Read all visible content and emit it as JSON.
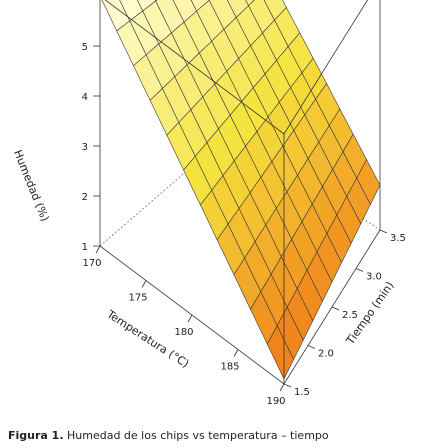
{
  "caption": {
    "label": "Figura 1.",
    "text": "Humedad de los chips vs temperatura – tiempo"
  },
  "chart_data": {
    "type": "surface3d",
    "title": "",
    "xlabel": "Temperatura (°C)",
    "ylabel": "Tiempo (min)",
    "zlabel": "Humedad (%)",
    "xlim": [
      170,
      190
    ],
    "ylim": [
      1.5,
      3.5
    ],
    "zlim": [
      1,
      6
    ],
    "x_ticks": [
      "170",
      "175",
      "180",
      "185",
      "190"
    ],
    "y_ticks": [
      "1.5",
      "2.0",
      "2.5",
      "3.0",
      "3.5"
    ],
    "z_ticks": [
      "1",
      "2",
      "3",
      "4",
      "5"
    ],
    "grid_x": [
      170,
      171.82,
      173.64,
      175.45,
      177.27,
      179.09,
      180.91,
      182.73,
      184.55,
      186.36,
      188.18,
      190
    ],
    "grid_y": [
      1.5,
      1.7,
      1.9,
      2.1,
      2.3,
      2.5,
      2.7,
      2.9,
      3.1,
      3.3,
      3.5
    ],
    "corner_values": {
      "x170_y1.5": 6.0,
      "x170_y3.5": 5.5,
      "x190_y1.5": 1.1,
      "x190_y3.5": 1.9
    },
    "colors": {
      "low": "#ffffe0",
      "mid": "#f5e23c",
      "high": "#f07818"
    }
  }
}
